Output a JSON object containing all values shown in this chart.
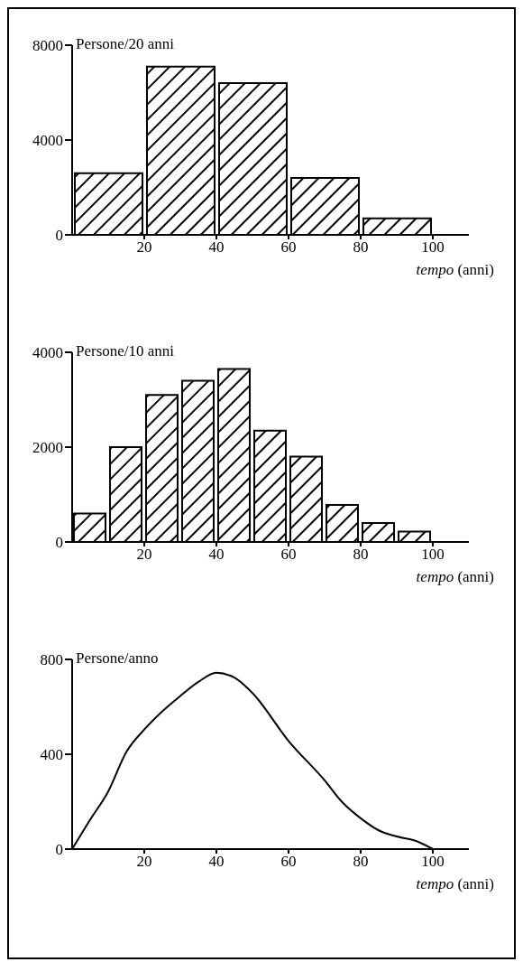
{
  "chart_data": [
    {
      "type": "histogram",
      "ylabel": "Persone/20 anni",
      "xlabel": "tempo (anni)",
      "bins": [
        0,
        20,
        40,
        60,
        80,
        100
      ],
      "values": [
        2600,
        7100,
        6400,
        2400,
        700
      ],
      "color": "#000000",
      "xlim": [
        0,
        110
      ],
      "xticks": [
        20,
        40,
        60,
        80,
        100
      ],
      "ylim": [
        0,
        8000
      ],
      "yticks": [
        0,
        4000,
        8000
      ]
    },
    {
      "type": "histogram",
      "ylabel": "Persone/10 anni",
      "xlabel": "tempo (anni)",
      "bins": [
        0,
        10,
        20,
        30,
        40,
        50,
        60,
        70,
        80,
        90,
        100
      ],
      "values": [
        600,
        2000,
        3100,
        3400,
        3650,
        2350,
        1800,
        780,
        400,
        220
      ],
      "color": "#000000",
      "xlim": [
        0,
        110
      ],
      "xticks": [
        20,
        40,
        60,
        80,
        100
      ],
      "ylim": [
        0,
        4000
      ],
      "yticks": [
        0,
        2000,
        4000
      ]
    },
    {
      "type": "line",
      "ylabel": "Persone/anno",
      "xlabel": "tempo (anni)",
      "x": [
        0,
        5,
        10,
        15,
        20,
        25,
        30,
        35,
        40,
        45,
        50,
        60,
        70,
        75,
        80,
        85,
        90,
        95,
        100
      ],
      "values": [
        0,
        124,
        243,
        409,
        504,
        581,
        646,
        705,
        744,
        723,
        658,
        456,
        290,
        196,
        130,
        79,
        53,
        36,
        0
      ],
      "color": "#000000",
      "xlim": [
        0,
        110
      ],
      "xticks": [
        20,
        40,
        60,
        80,
        100
      ],
      "ylim": [
        0,
        800
      ],
      "yticks": [
        0,
        400,
        800
      ]
    }
  ]
}
